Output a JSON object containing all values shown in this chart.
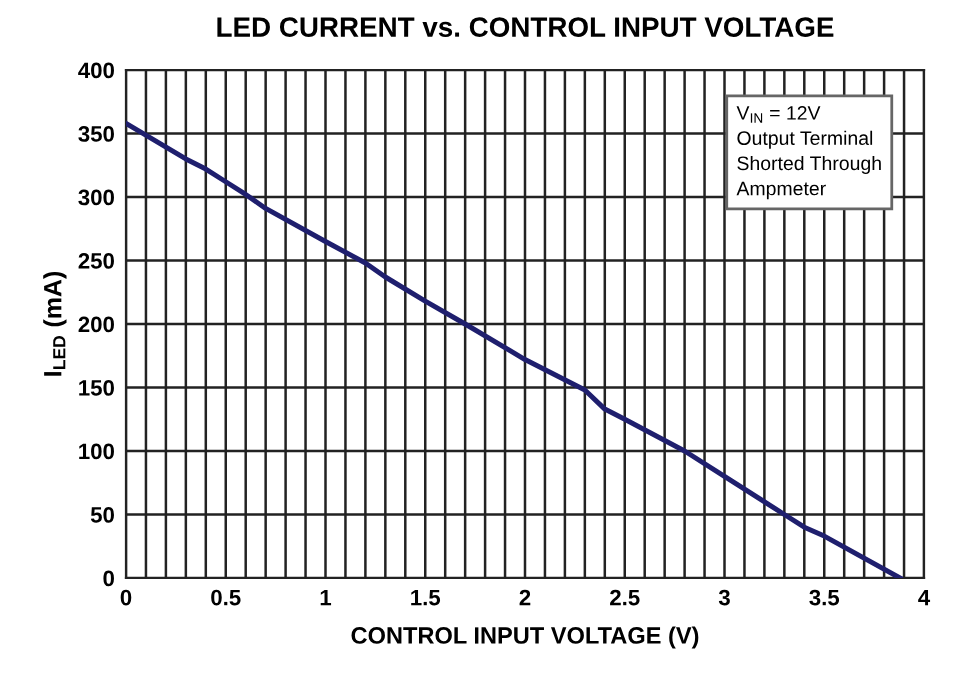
{
  "chart_data": {
    "type": "line",
    "title": "LED CURRENT vs. CONTROL INPUT VOLTAGE",
    "xlabel": "CONTROL INPUT VOLTAGE (V)",
    "ylabel": "I$_{LED}$ (mA)",
    "annotations": [
      "V$_{IN}$ = 12V\nOutput Terminal\nShorted Through\nAmpmeter"
    ],
    "x": [
      0,
      0.3,
      0.4,
      0.5,
      0.6,
      0.7,
      1,
      1.2,
      1.3,
      1.5,
      1.7,
      2,
      2.3,
      2.4,
      2.5,
      2.8,
      3,
      3.3,
      3.4,
      3.5,
      3.88
    ],
    "series": [
      {
        "color": "#1f1f6e",
        "values": [
          358,
          330,
          322,
          312,
          302,
          291,
          265,
          248,
          237,
          218,
          200,
          172,
          148,
          133,
          125,
          100,
          80,
          50,
          40,
          33,
          0
        ]
      }
    ],
    "xlim": [
      0,
      4
    ],
    "ylim": [
      0,
      400
    ],
    "xticks": [
      0,
      {
        "value": 0.1,
        "label": null
      },
      {
        "value": 0.2,
        "label": null
      },
      {
        "value": 0.3,
        "label": null
      },
      {
        "value": 0.4,
        "label": null
      },
      0.5,
      {
        "value": 0.6,
        "label": null
      },
      {
        "value": 0.7,
        "label": null
      },
      {
        "value": 0.8,
        "label": null
      },
      {
        "value": 0.9,
        "label": null
      },
      1,
      {
        "value": 1.1,
        "label": null
      },
      {
        "value": 1.2,
        "label": null
      },
      {
        "value": 1.3,
        "label": null
      },
      {
        "value": 1.4,
        "label": null
      },
      1.5,
      {
        "value": 1.6,
        "label": null
      },
      {
        "value": 1.7,
        "label": null
      },
      {
        "value": 1.8,
        "label": null
      },
      {
        "value": 1.9,
        "label": null
      },
      2,
      {
        "value": 2.1,
        "label": null
      },
      {
        "value": 2.2,
        "label": null
      },
      {
        "value": 2.3,
        "label": null
      },
      {
        "value": 2.4,
        "label": null
      },
      2.5,
      {
        "value": 2.6,
        "label": null
      },
      {
        "value": 2.7,
        "label": null
      },
      {
        "value": 2.8,
        "label": null
      },
      {
        "value": 2.9,
        "label": null
      },
      3,
      {
        "value": 3.1,
        "label": null
      },
      {
        "value": 3.2,
        "label": null
      },
      {
        "value": 3.3,
        "label": null
      },
      {
        "value": 3.4,
        "label": null
      },
      3.5,
      {
        "value": 3.6,
        "label": null
      },
      {
        "value": 3.7,
        "label": null
      },
      {
        "value": 3.8,
        "label": null
      },
      {
        "value": 3.9,
        "label": null
      },
      4
    ],
    "yticks": [
      0,
      50,
      100,
      150,
      200,
      250,
      300,
      350,
      400
    ],
    "grid": true,
    "marker": "none",
    "line_style": "solid"
  }
}
